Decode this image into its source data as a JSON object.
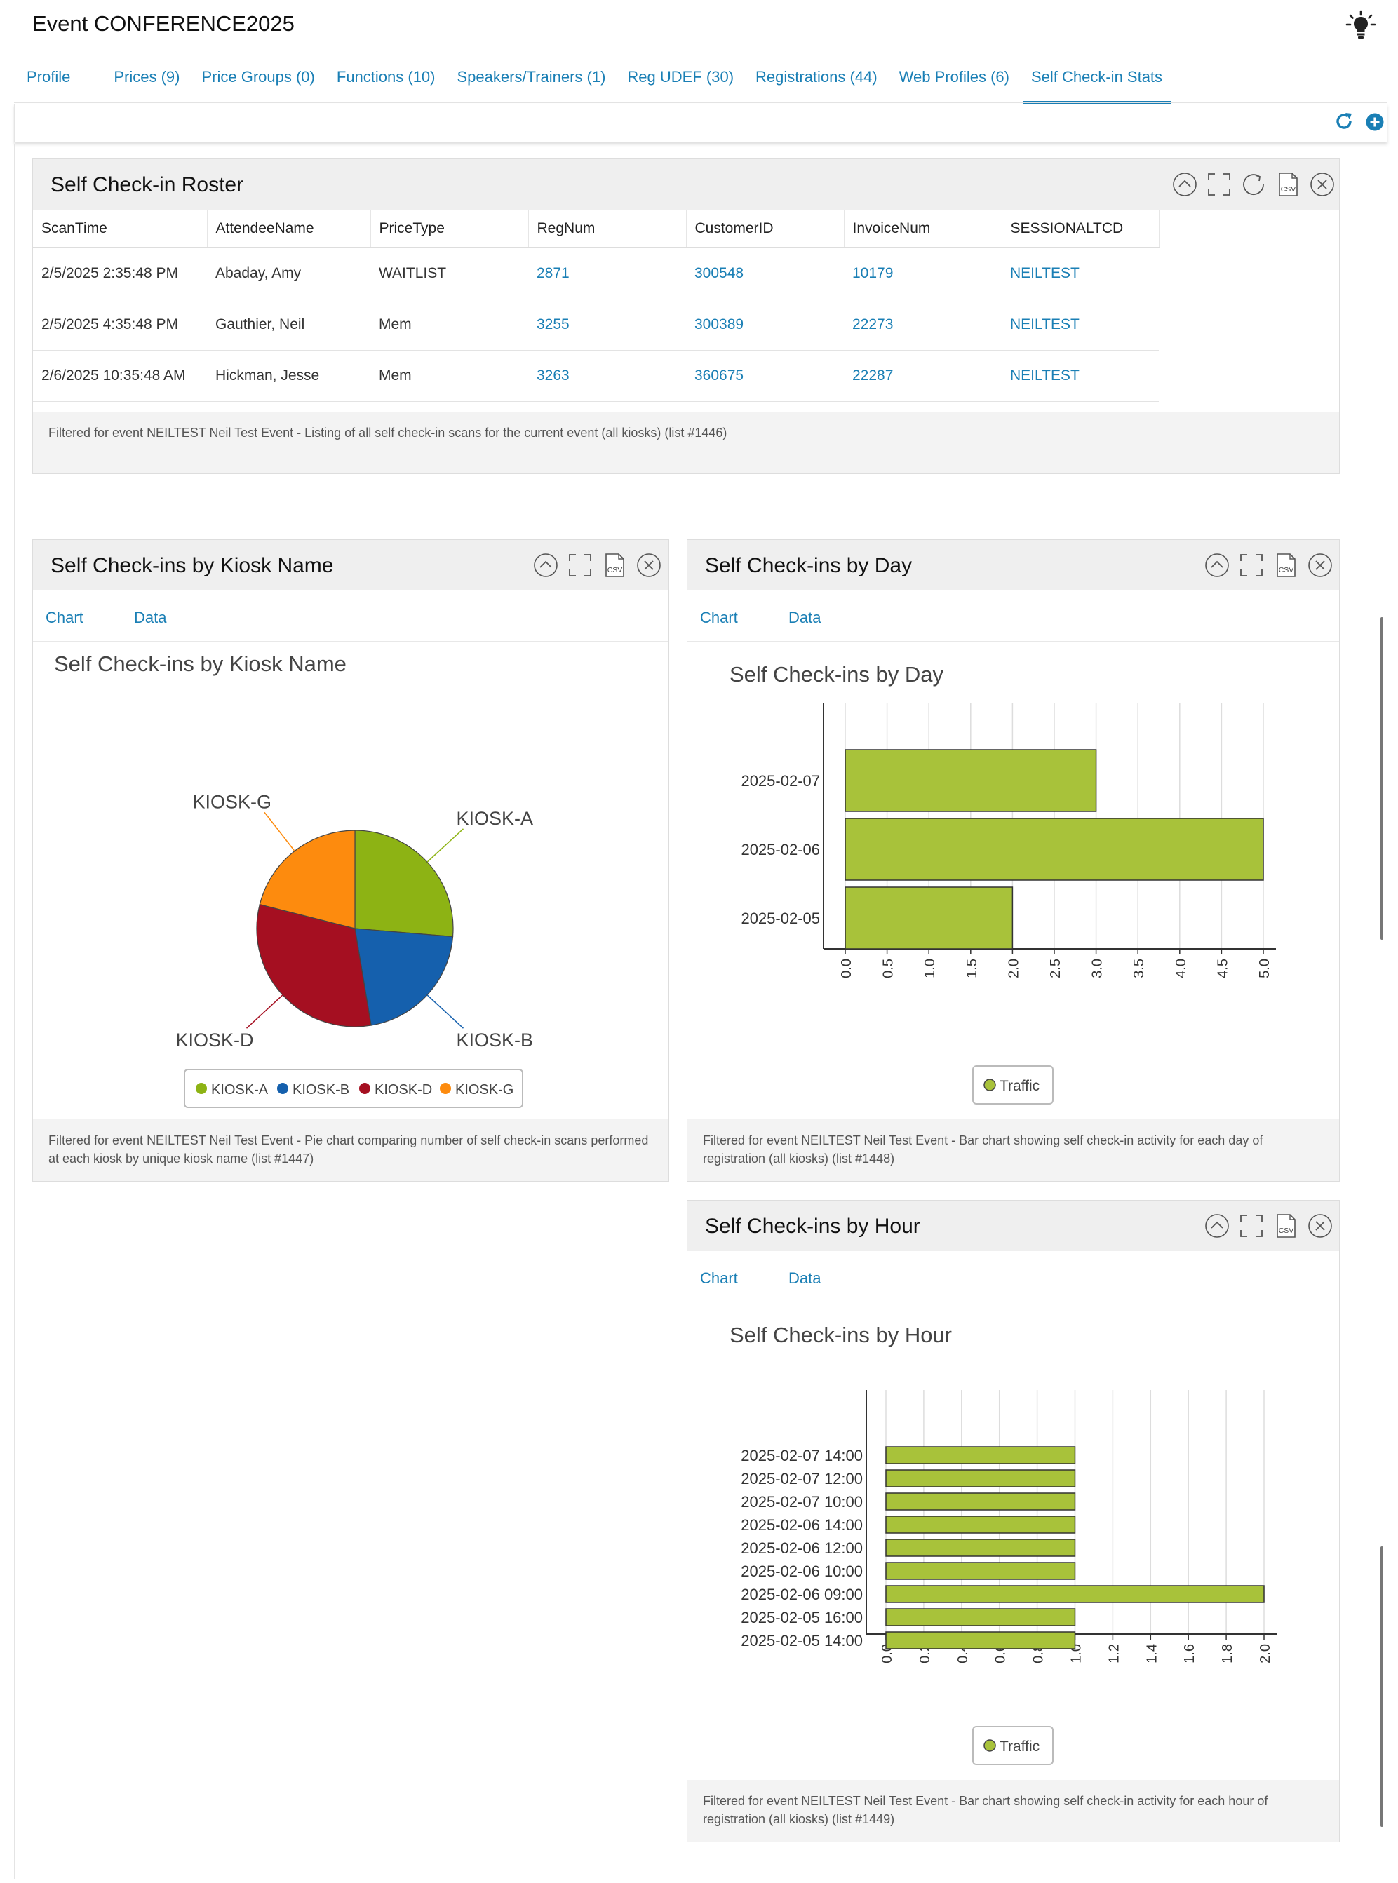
{
  "page": {
    "title": "Event CONFERENCE2025"
  },
  "tabs": [
    {
      "label": "Profile"
    },
    {
      "label": "Prices (9)"
    },
    {
      "label": "Price Groups (0)"
    },
    {
      "label": "Functions (10)"
    },
    {
      "label": "Speakers/Trainers (1)"
    },
    {
      "label": "Reg UDEF (30)"
    },
    {
      "label": "Registrations (44)"
    },
    {
      "label": "Web Profiles (6)"
    },
    {
      "label": "Self Check-in Stats",
      "active": true
    }
  ],
  "icons": {
    "toolbar": [
      "refresh-icon",
      "add-circle-icon"
    ],
    "panel": [
      "collapse-icon",
      "expand-icon",
      "reload-icon",
      "csv-icon",
      "close-icon"
    ],
    "csv_text": "CSV"
  },
  "colors": {
    "accent": "#1a7fb5",
    "kiosk_a": "#8db314",
    "kiosk_b": "#1560ad",
    "kiosk_d": "#a50f21",
    "kiosk_g": "#fd8b0e",
    "bar_fill": "#a8c23a"
  },
  "roster": {
    "title": "Self Check-in Roster",
    "columns": [
      "ScanTime",
      "AttendeeName",
      "PriceType",
      "RegNum",
      "CustomerID",
      "InvoiceNum",
      "SESSIONALTCD"
    ],
    "rows": [
      [
        "2/5/2025 2:35:48 PM",
        "Abaday, Amy",
        "WAITLIST",
        "2871",
        "300548",
        "10179",
        "NEILTEST"
      ],
      [
        "2/5/2025 4:35:48 PM",
        "Gauthier, Neil",
        "Mem",
        "3255",
        "300389",
        "22273",
        "NEILTEST"
      ],
      [
        "2/6/2025 10:35:48 AM",
        "Hickman, Jesse",
        "Mem",
        "3263",
        "360675",
        "22287",
        "NEILTEST"
      ]
    ],
    "footer": "Filtered for event NEILTEST Neil Test Event - Listing of all self check-in scans for the current event (all kiosks) (list #1446)"
  },
  "kiosk_panel": {
    "title": "Self Check-ins by Kiosk Name",
    "tab_chart": "Chart",
    "tab_data": "Data",
    "footer": "Filtered for event NEILTEST Neil Test Event - Pie chart comparing number of self check-in scans performed at each kiosk by unique kiosk name (list #1447)"
  },
  "day_panel": {
    "title": "Self Check-ins by Day",
    "tab_chart": "Chart",
    "tab_data": "Data",
    "footer": "Filtered for event NEILTEST Neil Test Event - Bar chart showing self check-in activity for each day of registration (all kiosks) (list #1448)"
  },
  "hour_panel": {
    "title": "Self Check-ins by Hour",
    "tab_chart": "Chart",
    "tab_data": "Data",
    "footer": "Filtered for event NEILTEST Neil Test Event - Bar chart showing self check-in activity for each hour of registration (all kiosks) (list #1449)"
  },
  "chart_data": [
    {
      "type": "pie",
      "title": "Self Check-ins by Kiosk Name",
      "categories": [
        "KIOSK-A",
        "KIOSK-B",
        "KIOSK-D",
        "KIOSK-G"
      ],
      "values": [
        1.25,
        1,
        1.5,
        1
      ],
      "colors": [
        "#8db314",
        "#1560ad",
        "#a50f21",
        "#fd8b0e"
      ],
      "legend": "bottom"
    },
    {
      "type": "bar",
      "orientation": "horizontal",
      "title": "Self Check-ins by Day",
      "categories": [
        "2025-02-07",
        "2025-02-06",
        "2025-02-05"
      ],
      "series": [
        {
          "name": "Traffic",
          "values": [
            3,
            5,
            2
          ]
        }
      ],
      "xlim": [
        0,
        5
      ],
      "ticks": [
        "0.0",
        "0.5",
        "1.0",
        "1.5",
        "2.0",
        "2.5",
        "3.0",
        "3.5",
        "4.0",
        "4.5",
        "5.0"
      ],
      "grid": true,
      "legend": "bottom"
    },
    {
      "type": "bar",
      "orientation": "horizontal",
      "title": "Self Check-ins by Hour",
      "categories": [
        "2025-02-07 14:00",
        "2025-02-07 12:00",
        "2025-02-07 10:00",
        "2025-02-06 14:00",
        "2025-02-06 12:00",
        "2025-02-06 10:00",
        "2025-02-06 09:00",
        "2025-02-05 16:00",
        "2025-02-05 14:00"
      ],
      "series": [
        {
          "name": "Traffic",
          "values": [
            1,
            1,
            1,
            1,
            1,
            1,
            2,
            1,
            1
          ]
        }
      ],
      "xlim": [
        0,
        2
      ],
      "ticks": [
        "0.0",
        "0.2",
        "0.4",
        "0.6",
        "0.8",
        "1.0",
        "1.2",
        "1.4",
        "1.6",
        "1.8",
        "2.0"
      ],
      "grid": true,
      "legend": "bottom"
    }
  ]
}
